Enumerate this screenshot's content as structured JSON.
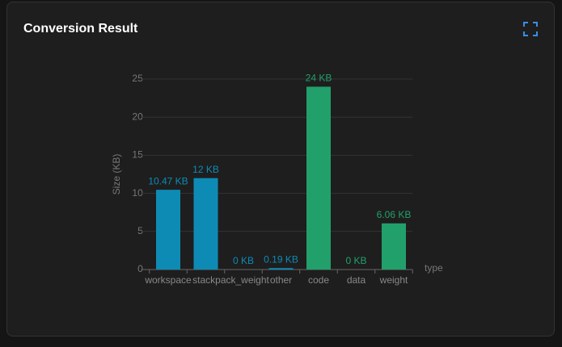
{
  "header": {
    "title": "Conversion Result"
  },
  "chart_data": {
    "type": "bar",
    "categories": [
      "workspace",
      "stackpack_weight",
      null,
      "other",
      "code",
      "data",
      "weight"
    ],
    "values": [
      10.47,
      12,
      0,
      0.19,
      24,
      0,
      6.06
    ],
    "value_labels": [
      "10.47 KB",
      "12 KB",
      "0 KB",
      "0.19 KB",
      "24 KB",
      "0 KB",
      "6.06 KB"
    ],
    "colors": [
      "#0e8bb5",
      "#0e8bb5",
      "#0e8bb5",
      "#0e8bb5",
      "#22a06b",
      "#22a06b",
      "#22a06b"
    ],
    "y_label": "Size (KB)",
    "x_label": "type",
    "ylim": [
      0,
      25
    ],
    "yticks": [
      0,
      5,
      10,
      15,
      20,
      25
    ],
    "grid": true
  }
}
